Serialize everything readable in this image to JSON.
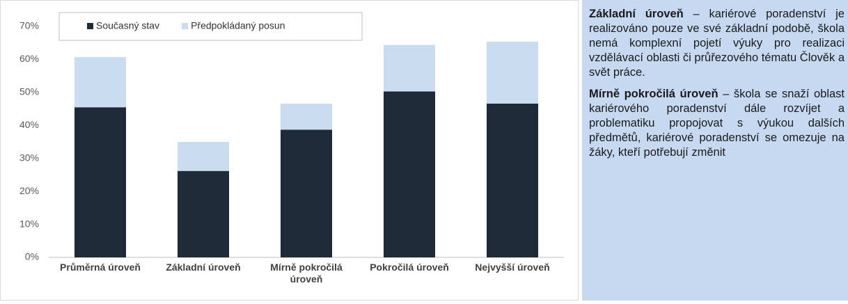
{
  "chart_data": {
    "type": "stacked_bar",
    "categories": [
      "Průměrná úroveň",
      "Základní úroveň",
      "Mírně pokročilá úroveň",
      "Pokročilá úroveň",
      "Nejvyšší úroveň"
    ],
    "series": [
      {
        "name": "Současný stav",
        "color": "#1f2a38",
        "values": [
          45.5,
          26.2,
          38.7,
          50.3,
          46.6
        ]
      },
      {
        "name": "Předpokládaný posun",
        "color": "#c9dcf0",
        "values": [
          15.2,
          8.8,
          7.9,
          14.1,
          18.8
        ]
      }
    ],
    "ylim": [
      0,
      70
    ],
    "yticks": [
      {
        "value": 0,
        "label": "0%"
      },
      {
        "value": 10,
        "label": "10%"
      },
      {
        "value": 20,
        "label": "20%"
      },
      {
        "value": 30,
        "label": "30%"
      },
      {
        "value": 40,
        "label": "40%"
      },
      {
        "value": 50,
        "label": "50%"
      },
      {
        "value": 60,
        "label": "60%"
      },
      {
        "value": 70,
        "label": "70%"
      }
    ],
    "grid": false,
    "legend": "top-left"
  },
  "sidebar": {
    "paragraphs": [
      {
        "lead": "Základní úroveň",
        "text": " – kariérové poradenství je realizováno pouze ve své základní podobě, škola nemá komplexní pojetí výuky pro realizaci vzdělávací oblasti či průřezového tématu Člověk a svět práce."
      },
      {
        "lead": "Mírně pokročilá úroveň",
        "text": " – škola se snaží oblast kariérového poradenství dále rozvíjet a problematiku propojovat s výukou dalších předmětů, kariérové poradenství se omezuje na žáky, kteří potřebují změnit"
      }
    ]
  }
}
